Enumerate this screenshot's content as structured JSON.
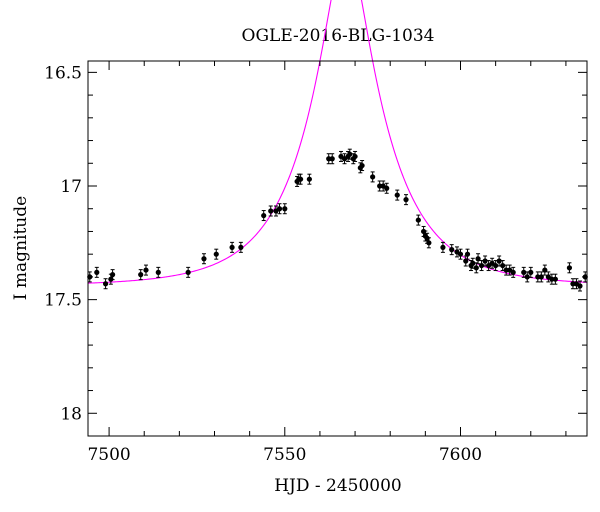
{
  "chart_data": {
    "type": "scatter",
    "title": "OGLE-2016-BLG-1034",
    "xlabel": "HJD - 2450000",
    "ylabel": "I magnitude",
    "xlim": [
      7494,
      7636
    ],
    "ylim": [
      18.1,
      16.45
    ],
    "y_inverted": true,
    "grid": false,
    "x_ticks": [
      7500,
      7550,
      7600
    ],
    "y_ticks": [
      16.5,
      17,
      17.5,
      18
    ],
    "y_tick_labels": [
      "16.5",
      "17",
      "17.5",
      "18"
    ],
    "colors": {
      "points": "#000000",
      "model": "#ff00ff",
      "axes": "#000000"
    },
    "model": {
      "name": "",
      "t0": 7567.5,
      "u0": 0.26,
      "tE": 22,
      "baseline_mag": 17.44
    },
    "series": [
      {
        "name": "",
        "x": [
          7494.5,
          7496.5,
          7499.0,
          7500.5,
          7501.0,
          7509.0,
          7510.5,
          7514.0,
          7522.5,
          7527.0,
          7530.5,
          7535.0,
          7537.5,
          7544.0,
          7546.0,
          7547.5,
          7548.5,
          7550.0,
          7553.5,
          7554.0,
          7554.5,
          7557.0,
          7562.5,
          7563.5,
          7566.0,
          7567.0,
          7568.0,
          7568.5,
          7569.5,
          7570.0,
          7571.5,
          7572.0,
          7575.0,
          7577.0,
          7578.0,
          7579.0,
          7582.0,
          7584.5,
          7588.0,
          7589.5,
          7590.0,
          7590.5,
          7591.0,
          7595.0,
          7597.5,
          7599.0,
          7600.0,
          7601.5,
          7602.0,
          7603.0,
          7603.5,
          7604.5,
          7605.0,
          7606.0,
          7607.0,
          7608.0,
          7609.0,
          7610.0,
          7611.0,
          7612.0,
          7613.0,
          7614.0,
          7615.0,
          7618.0,
          7619.0,
          7620.0,
          7622.0,
          7623.0,
          7624.0,
          7625.0,
          7626.0,
          7627.0,
          7631.0,
          7632.0,
          7633.0,
          7634.0,
          7635.5
        ],
        "y": [
          17.4,
          17.38,
          17.43,
          17.41,
          17.39,
          17.39,
          17.37,
          17.38,
          17.38,
          17.32,
          17.3,
          17.27,
          17.27,
          17.13,
          17.11,
          17.11,
          17.1,
          17.1,
          16.98,
          16.97,
          16.97,
          16.97,
          16.88,
          16.88,
          16.87,
          16.88,
          16.87,
          16.86,
          16.88,
          16.87,
          16.92,
          16.91,
          16.96,
          17.0,
          17.0,
          17.01,
          17.04,
          17.06,
          17.15,
          17.2,
          17.22,
          17.23,
          17.25,
          17.27,
          17.28,
          17.29,
          17.3,
          17.33,
          17.3,
          17.35,
          17.34,
          17.36,
          17.32,
          17.35,
          17.33,
          17.35,
          17.34,
          17.35,
          17.33,
          17.35,
          17.37,
          17.37,
          17.38,
          17.38,
          17.4,
          17.38,
          17.4,
          17.4,
          17.37,
          17.4,
          17.41,
          17.41,
          17.36,
          17.43,
          17.43,
          17.44,
          17.4
        ]
      }
    ]
  }
}
